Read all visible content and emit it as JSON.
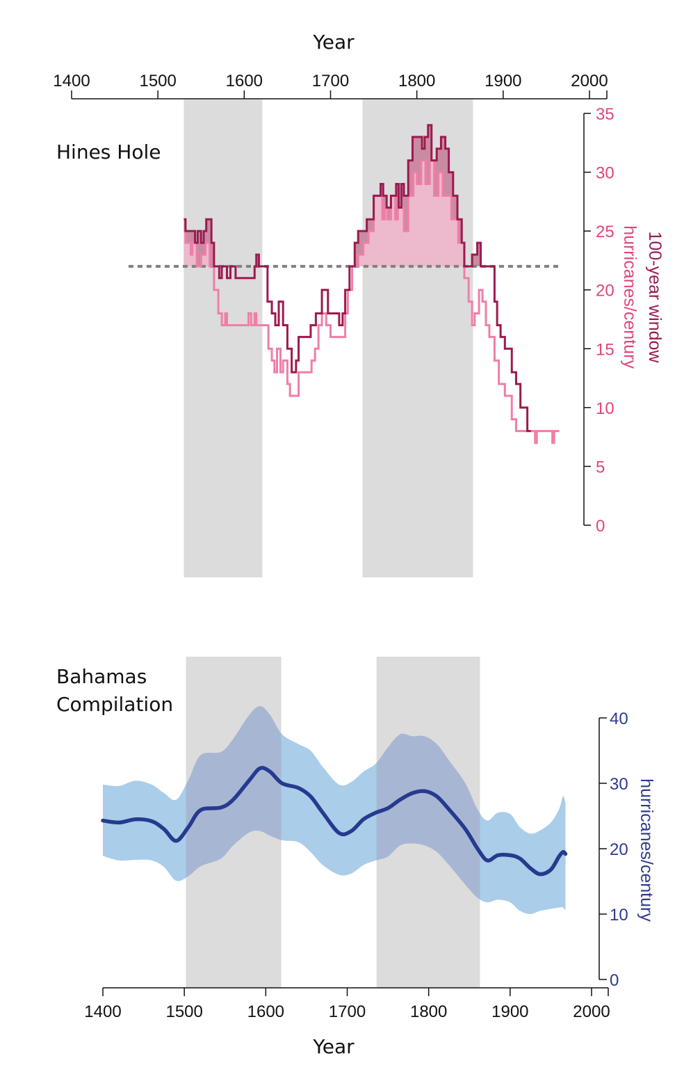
{
  "chart_data": [
    {
      "type": "line",
      "title": "Hines Hole",
      "xlabel": "Year",
      "ylabel_line1": "100-year window",
      "ylabel_line2": "hurricanes/century",
      "xlim": [
        1400,
        2000
      ],
      "ylim": [
        0,
        35
      ],
      "xticks": [
        1400,
        1500,
        1600,
        1700,
        1800,
        1900,
        2000
      ],
      "yticks": [
        0,
        5,
        10,
        15,
        20,
        25,
        30,
        35
      ],
      "threshold": 22,
      "shaded_periods": [
        [
          1530,
          1621
        ],
        [
          1737,
          1865
        ]
      ],
      "colors": {
        "dark": "#9c1a50",
        "light": "#f07ea8",
        "dark_fill": "#c98ba1",
        "light_fill": "#edb9cd",
        "axis": "#e0457b",
        "threshold": "#808080",
        "shade": "#dcdcdc"
      },
      "series": [
        {
          "style": "dark",
          "x": [
            1530,
            1532,
            1543,
            1546,
            1550,
            1553,
            1556,
            1562,
            1565,
            1571,
            1574,
            1580,
            1584,
            1590,
            1612,
            1614,
            1617,
            1625,
            1627,
            1632,
            1636,
            1640,
            1645,
            1650,
            1655,
            1660,
            1663,
            1677,
            1683,
            1690,
            1697,
            1710,
            1714,
            1717,
            1722,
            1728,
            1732,
            1738,
            1742,
            1750,
            1758,
            1761,
            1765,
            1770,
            1776,
            1779,
            1782,
            1785,
            1790,
            1795,
            1806,
            1809,
            1813,
            1817,
            1823,
            1828,
            1833,
            1837,
            1842,
            1847,
            1852,
            1855,
            1860,
            1864,
            1870,
            1874,
            1890,
            1893,
            1897,
            1902,
            1910,
            1915,
            1920,
            1928,
            1932
          ],
          "y": [
            26,
            25,
            24,
            25,
            24,
            25,
            26,
            24,
            22,
            21,
            22,
            21,
            22,
            21,
            22,
            23,
            22,
            22,
            19,
            18,
            17,
            19,
            17,
            15,
            13,
            14,
            16,
            17,
            18,
            20,
            18,
            17,
            18,
            20,
            22,
            24,
            25,
            25,
            26,
            28,
            29,
            28,
            27,
            28,
            29,
            27,
            29,
            28,
            31,
            33,
            32,
            33,
            34,
            31,
            32,
            33,
            32,
            30,
            28,
            26,
            24,
            22,
            22,
            23,
            24,
            22,
            19,
            17,
            16,
            15,
            13,
            12,
            10,
            8,
            8
          ]
        },
        {
          "style": "light",
          "x": [
            1530,
            1532,
            1538,
            1540,
            1545,
            1550,
            1555,
            1560,
            1565,
            1570,
            1574,
            1578,
            1580,
            1605,
            1608,
            1612,
            1614,
            1625,
            1628,
            1632,
            1635,
            1638,
            1642,
            1645,
            1650,
            1653,
            1660,
            1663,
            1678,
            1682,
            1686,
            1690,
            1695,
            1700,
            1712,
            1717,
            1720,
            1725,
            1732,
            1738,
            1744,
            1750,
            1760,
            1763,
            1766,
            1770,
            1775,
            1778,
            1785,
            1790,
            1796,
            1800,
            1805,
            1810,
            1815,
            1820,
            1825,
            1830,
            1840,
            1848,
            1855,
            1860,
            1864,
            1867,
            1872,
            1876,
            1880,
            1884,
            1890,
            1895,
            1902,
            1910,
            1915,
            1935,
            1937,
            1939,
            1955,
            1957,
            1959,
            1965
          ],
          "y": [
            25,
            24,
            23,
            24,
            22,
            23,
            24,
            22,
            20,
            18,
            17,
            18,
            17,
            18,
            17,
            18,
            17,
            17,
            15,
            14,
            13,
            15,
            13,
            14,
            12,
            11,
            11,
            13,
            14,
            15,
            17,
            18,
            17,
            16,
            16,
            18,
            20,
            22,
            23,
            24,
            25,
            28,
            26,
            27,
            26,
            28,
            26,
            27,
            25,
            28,
            30,
            29,
            31,
            29,
            31,
            28,
            30,
            28,
            26,
            24,
            21,
            19,
            17,
            18,
            20,
            19,
            17,
            16,
            14,
            12,
            11,
            9,
            8,
            8,
            7,
            8,
            8,
            7,
            8,
            8
          ]
        }
      ]
    },
    {
      "type": "area",
      "title_line1": "Bahamas",
      "title_line2": "Compilation",
      "xlabel": "Year",
      "ylabel": "hurricanes/century",
      "xlim": [
        1400,
        2000
      ],
      "ylim": [
        0,
        40
      ],
      "xticks": [
        1400,
        1500,
        1600,
        1700,
        1800,
        1900,
        2000
      ],
      "yticks": [
        0,
        10,
        20,
        30,
        40
      ],
      "shaded_periods": [
        [
          1502,
          1619
        ],
        [
          1736,
          1863
        ]
      ],
      "colors": {
        "mean": "#263a8f",
        "band": "#aacde9",
        "band_overlap": "#a7b7d3",
        "axis": "#2d3a8c",
        "shade": "#dcdcdc"
      },
      "x": [
        1400,
        1420,
        1440,
        1460,
        1475,
        1490,
        1505,
        1520,
        1545,
        1560,
        1580,
        1593,
        1605,
        1620,
        1640,
        1655,
        1670,
        1690,
        1705,
        1720,
        1735,
        1750,
        1765,
        1780,
        1795,
        1810,
        1825,
        1845,
        1860,
        1872,
        1885,
        1900,
        1912,
        1925,
        1937,
        1950,
        1960,
        1965,
        1968
      ],
      "mean": [
        24.3,
        24,
        24.5,
        24.2,
        23,
        21.2,
        23.3,
        25.9,
        26.3,
        27.5,
        30.5,
        32.3,
        31.8,
        30,
        29.3,
        28,
        25.5,
        22.4,
        22.7,
        24.5,
        25.5,
        26.2,
        27.5,
        28.5,
        28.8,
        28,
        26,
        23,
        20,
        18.2,
        19,
        19,
        18.5,
        17,
        16.1,
        16.8,
        18.8,
        19.5,
        19.2
      ],
      "upper": [
        29.8,
        29.6,
        30.4,
        29.8,
        28.5,
        27.5,
        30.5,
        34.3,
        34.8,
        36.8,
        40.5,
        41.8,
        40.5,
        37.5,
        36,
        35,
        32.5,
        29.8,
        30.2,
        31.8,
        33,
        35.5,
        37.5,
        37.2,
        37.2,
        36,
        33.5,
        30,
        26,
        24.3,
        25.5,
        25.3,
        23.3,
        22.3,
        22.8,
        24,
        26,
        28,
        27
      ],
      "lower": [
        18.9,
        18.2,
        18.3,
        18.2,
        17.2,
        15.1,
        15.8,
        17.3,
        18.5,
        20.5,
        22.5,
        22.7,
        22,
        21.3,
        21,
        19.5,
        17.5,
        16,
        16.2,
        17.5,
        18.2,
        18.8,
        20.5,
        20.8,
        20.5,
        19.5,
        17.5,
        14.5,
        12.5,
        11.8,
        12.2,
        11.8,
        10.5,
        10,
        10.5,
        10.8,
        11,
        11,
        10.5
      ]
    }
  ]
}
